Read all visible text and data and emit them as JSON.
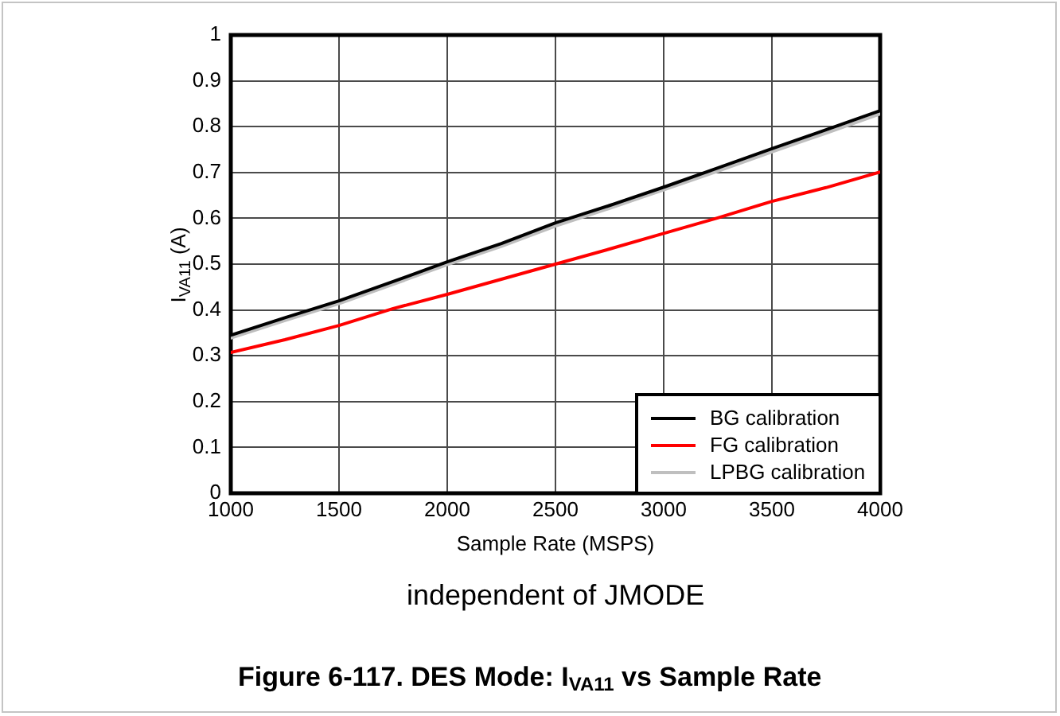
{
  "chart_data": {
    "type": "line",
    "title": "Figure 6-117. DES Mode: I$_{VA11}$ vs Sample Rate",
    "xlabel": "Sample Rate (MSPS)",
    "ylabel": "I$_{VA11}$ (A)",
    "annotations": [
      "independent of JMODE"
    ],
    "x": [
      1000,
      1250,
      1500,
      1750,
      2000,
      2250,
      2500,
      2750,
      3000,
      3250,
      3500,
      3750,
      4000
    ],
    "series": [
      {
        "name": "BG calibration",
        "color": "#000000",
        "values": [
          0.345,
          0.383,
          0.42,
          0.462,
          0.505,
          0.545,
          0.59,
          0.628,
          0.668,
          0.71,
          0.752,
          0.793,
          0.835
        ]
      },
      {
        "name": "FG calibration",
        "color": "#ff0000",
        "values": [
          0.307,
          0.335,
          0.366,
          0.403,
          0.434,
          0.467,
          0.5,
          0.533,
          0.567,
          0.601,
          0.637,
          0.667,
          0.701
        ]
      },
      {
        "name": "LPBG calibration",
        "color": "#bfbfbf",
        "values": [
          0.339,
          0.377,
          0.414,
          0.456,
          0.499,
          0.539,
          0.583,
          0.622,
          0.662,
          0.703,
          0.745,
          0.786,
          0.828
        ]
      }
    ],
    "xlim": [
      1000,
      4000
    ],
    "xticks": [
      1000,
      1500,
      2000,
      2500,
      3000,
      3500,
      4000
    ],
    "ylim": [
      0,
      1
    ],
    "yticks": [
      0,
      0.1,
      0.2,
      0.3,
      0.4,
      0.5,
      0.6,
      0.7,
      0.8,
      0.9,
      1
    ],
    "grid": true,
    "legend": "bottom right"
  }
}
